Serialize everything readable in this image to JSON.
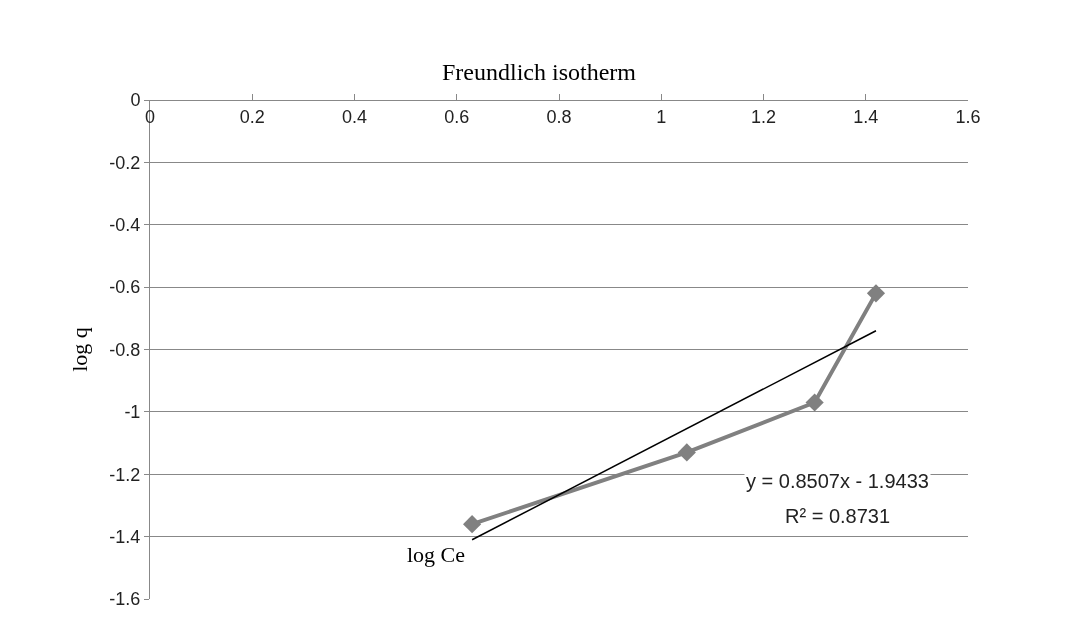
{
  "chart_data": {
    "type": "line",
    "title": "Freundlich isotherm",
    "xlabel": "log Ce",
    "ylabel": "log q",
    "series": [
      {
        "color": "#808080",
        "x": [
          0.63,
          1.05,
          1.3,
          1.42
        ],
        "values": [
          -1.36,
          -1.13,
          -0.97,
          -0.62
        ],
        "marker": "diamond"
      },
      {
        "color": "#000000",
        "x": [
          0.63,
          1.42
        ],
        "values": [
          -1.41,
          -0.74
        ],
        "marker": "none"
      }
    ],
    "annotations": [
      "y = 0.8507x - 1.9433",
      "R² = 0.8731"
    ],
    "xlim": [
      0,
      1.6
    ],
    "xticks": [
      0,
      0.2,
      0.4,
      0.6,
      0.8,
      1,
      1.2,
      1.4,
      1.6
    ],
    "ylim": [
      -1.6,
      0
    ],
    "yticks": [
      0,
      -0.2,
      -0.4,
      -0.6,
      -0.8,
      -1,
      -1.2,
      -1.4,
      -1.6
    ],
    "grid": "y"
  }
}
